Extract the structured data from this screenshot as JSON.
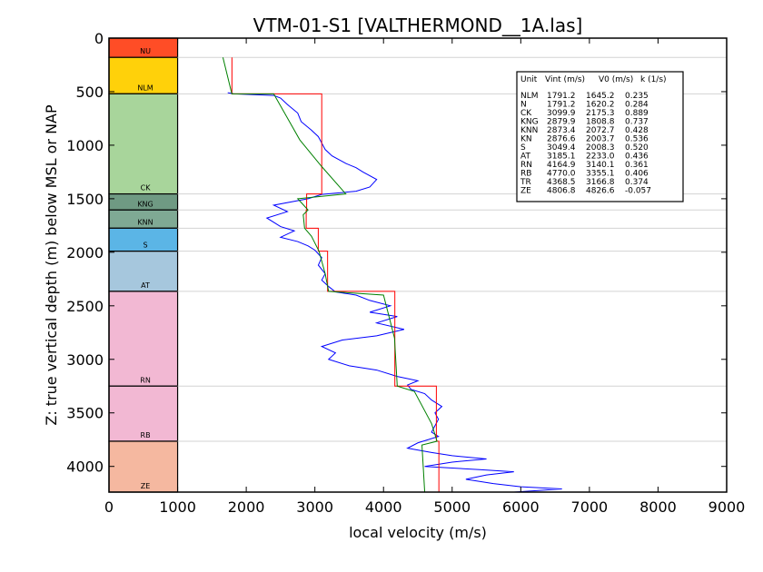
{
  "chart_data": {
    "type": "line",
    "title": "VTM-01-S1 [VALTHERMOND__1A.las]",
    "xlabel": "local velocity (m/s)",
    "ylabel": "Z: true vertical depth (m) below MSL or NAP",
    "xlim": [
      0,
      9000
    ],
    "ylim": [
      4240,
      0
    ],
    "x_ticks": [
      0,
      1000,
      2000,
      3000,
      4000,
      5000,
      6000,
      7000,
      8000,
      9000
    ],
    "y_ticks": [
      0,
      500,
      1000,
      1500,
      2000,
      2500,
      3000,
      3500,
      4000
    ],
    "units": [
      {
        "name": "NU",
        "top": 0,
        "base": 180,
        "color": "#ff4d26"
      },
      {
        "name": "NLM",
        "top": 180,
        "base": 520,
        "color": "#ffd10a"
      },
      {
        "name": "CK",
        "top": 520,
        "base": 1455,
        "color": "#a8d59b"
      },
      {
        "name": "KNG",
        "top": 1455,
        "base": 1605,
        "color": "#6f9a83"
      },
      {
        "name": "KNN",
        "top": 1605,
        "base": 1775,
        "color": "#7fa994"
      },
      {
        "name": "S",
        "top": 1775,
        "base": 1990,
        "color": "#5bb5e6"
      },
      {
        "name": "AT",
        "top": 1990,
        "base": 2365,
        "color": "#a6c7dd"
      },
      {
        "name": "RN",
        "top": 2365,
        "base": 3250,
        "color": "#f2b8d3"
      },
      {
        "name": "RB",
        "top": 3250,
        "base": 3765,
        "color": "#f2b8d3"
      },
      {
        "name": "ZE",
        "top": 3765,
        "base": 4240,
        "color": "#f5b8a0"
      }
    ],
    "log_curve": [
      [
        1730,
        510
      ],
      [
        1820,
        520
      ],
      [
        2400,
        535
      ],
      [
        2500,
        560
      ],
      [
        2600,
        620
      ],
      [
        2750,
        700
      ],
      [
        2800,
        780
      ],
      [
        2950,
        860
      ],
      [
        3050,
        920
      ],
      [
        3100,
        980
      ],
      [
        3150,
        1040
      ],
      [
        3250,
        1100
      ],
      [
        3450,
        1170
      ],
      [
        3600,
        1210
      ],
      [
        3700,
        1250
      ],
      [
        3900,
        1320
      ],
      [
        3800,
        1390
      ],
      [
        3600,
        1430
      ],
      [
        3100,
        1460
      ],
      [
        2900,
        1500
      ],
      [
        2400,
        1560
      ],
      [
        2600,
        1620
      ],
      [
        2300,
        1680
      ],
      [
        2500,
        1760
      ],
      [
        2700,
        1800
      ],
      [
        2500,
        1860
      ],
      [
        2750,
        1900
      ],
      [
        2900,
        1940
      ],
      [
        3000,
        1980
      ],
      [
        3100,
        2050
      ],
      [
        3050,
        2120
      ],
      [
        3150,
        2200
      ],
      [
        3100,
        2260
      ],
      [
        3200,
        2320
      ],
      [
        3300,
        2370
      ],
      [
        3600,
        2400
      ],
      [
        3800,
        2450
      ],
      [
        4100,
        2500
      ],
      [
        3800,
        2560
      ],
      [
        4200,
        2600
      ],
      [
        3900,
        2660
      ],
      [
        4300,
        2720
      ],
      [
        3900,
        2780
      ],
      [
        3400,
        2820
      ],
      [
        3100,
        2880
      ],
      [
        3300,
        2940
      ],
      [
        3200,
        3000
      ],
      [
        3500,
        3060
      ],
      [
        3900,
        3100
      ],
      [
        4200,
        3160
      ],
      [
        4500,
        3200
      ],
      [
        4350,
        3240
      ],
      [
        4400,
        3280
      ],
      [
        4600,
        3320
      ],
      [
        4700,
        3380
      ],
      [
        4850,
        3440
      ],
      [
        4750,
        3500
      ],
      [
        4800,
        3560
      ],
      [
        4750,
        3620
      ],
      [
        4700,
        3680
      ],
      [
        4800,
        3720
      ],
      [
        4500,
        3780
      ],
      [
        4350,
        3830
      ],
      [
        4700,
        3870
      ],
      [
        5000,
        3900
      ],
      [
        5500,
        3930
      ],
      [
        5000,
        3960
      ],
      [
        4600,
        4000
      ],
      [
        5400,
        4030
      ],
      [
        5900,
        4050
      ],
      [
        5500,
        4080
      ],
      [
        5200,
        4120
      ],
      [
        5600,
        4160
      ],
      [
        6000,
        4190
      ],
      [
        6600,
        4210
      ],
      [
        5900,
        4240
      ]
    ],
    "interval_velocity_steps": [
      [
        1791.2,
        180
      ],
      [
        1791.2,
        520
      ],
      [
        3099.9,
        520
      ],
      [
        3099.9,
        1455
      ],
      [
        2879.9,
        1455
      ],
      [
        2879.9,
        1605
      ],
      [
        2873.4,
        1605
      ],
      [
        2873.4,
        1775
      ],
      [
        3049.4,
        1775
      ],
      [
        3049.4,
        1990
      ],
      [
        3185.1,
        1990
      ],
      [
        3185.1,
        2365
      ],
      [
        4164.9,
        2365
      ],
      [
        4164.9,
        3250
      ],
      [
        4770.0,
        3250
      ],
      [
        4770.0,
        3765
      ],
      [
        4806.8,
        3765
      ],
      [
        4806.8,
        4240
      ]
    ],
    "v0k_fit": [
      [
        1660,
        180
      ],
      [
        1790,
        520
      ],
      [
        2400,
        520
      ],
      [
        2780,
        950
      ],
      [
        3100,
        1200
      ],
      [
        3450,
        1455
      ],
      [
        2750,
        1500
      ],
      [
        2900,
        1605
      ],
      [
        2830,
        1650
      ],
      [
        2850,
        1775
      ],
      [
        2950,
        1850
      ],
      [
        3060,
        1990
      ],
      [
        3150,
        2200
      ],
      [
        3200,
        2365
      ],
      [
        4000,
        2400
      ],
      [
        4160,
        2800
      ],
      [
        4200,
        3250
      ],
      [
        4450,
        3300
      ],
      [
        4700,
        3600
      ],
      [
        4780,
        3765
      ],
      [
        4560,
        3800
      ],
      [
        4600,
        4240
      ]
    ],
    "legend_table": {
      "header": [
        "Unit",
        "Vint (m/s)",
        "V0 (m/s)",
        "k (1/s)"
      ],
      "rows": [
        [
          "NLM",
          "1791.2",
          "1645.2",
          "0.235"
        ],
        [
          "N",
          "1791.2",
          "1620.2",
          "0.284"
        ],
        [
          "CK",
          "3099.9",
          "2175.3",
          "0.889"
        ],
        [
          "KNG",
          "2879.9",
          "1808.8",
          "0.737"
        ],
        [
          "KNN",
          "2873.4",
          "2072.7",
          "0.428"
        ],
        [
          "KN",
          "2876.6",
          "2003.7",
          "0.536"
        ],
        [
          "S",
          "3049.4",
          "2008.3",
          "0.520"
        ],
        [
          "AT",
          "3185.1",
          "2233.0",
          "0.436"
        ],
        [
          "RN",
          "4164.9",
          "3140.1",
          "0.361"
        ],
        [
          "RB",
          "4770.0",
          "3355.1",
          "0.406"
        ],
        [
          "TR",
          "4368.5",
          "3166.8",
          "0.374"
        ],
        [
          "ZE",
          "4806.8",
          "4826.6",
          "-0.057"
        ]
      ]
    },
    "colors": {
      "log": "#0000ff",
      "interval": "#ff0000",
      "fit": "#008000",
      "boundary": "#d3d3d3"
    }
  }
}
